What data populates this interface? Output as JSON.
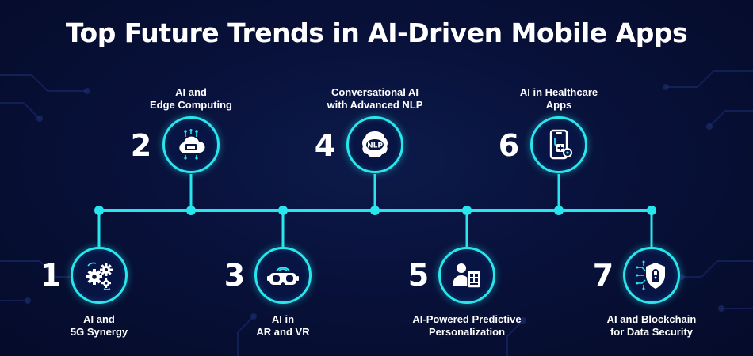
{
  "title": "Top Future Trends in AI-Driven Mobile Apps",
  "colors": {
    "accent": "#27e6ee",
    "background": "#08113a",
    "text": "#ffffff"
  },
  "trends": [
    {
      "number": "1",
      "line1": "AI and",
      "line2": "5G Synergy",
      "icon": "gears-icon"
    },
    {
      "number": "2",
      "line1": "AI and",
      "line2": "Edge Computing",
      "icon": "cloud-computing-icon"
    },
    {
      "number": "3",
      "line1": "AI in",
      "line2": "AR and VR",
      "icon": "vr-headset-icon"
    },
    {
      "number": "4",
      "line1": "Conversational AI",
      "line2": "with Advanced NLP",
      "icon": "nlp-brain-icon"
    },
    {
      "number": "5",
      "line1": "AI-Powered Predictive",
      "line2": "Personalization",
      "icon": "user-profile-icon"
    },
    {
      "number": "6",
      "line1": "AI in Healthcare",
      "line2": "Apps",
      "icon": "healthcare-phone-icon"
    },
    {
      "number": "7",
      "line1": "AI and Blockchain",
      "line2": "for Data Security",
      "icon": "security-shield-icon"
    }
  ]
}
